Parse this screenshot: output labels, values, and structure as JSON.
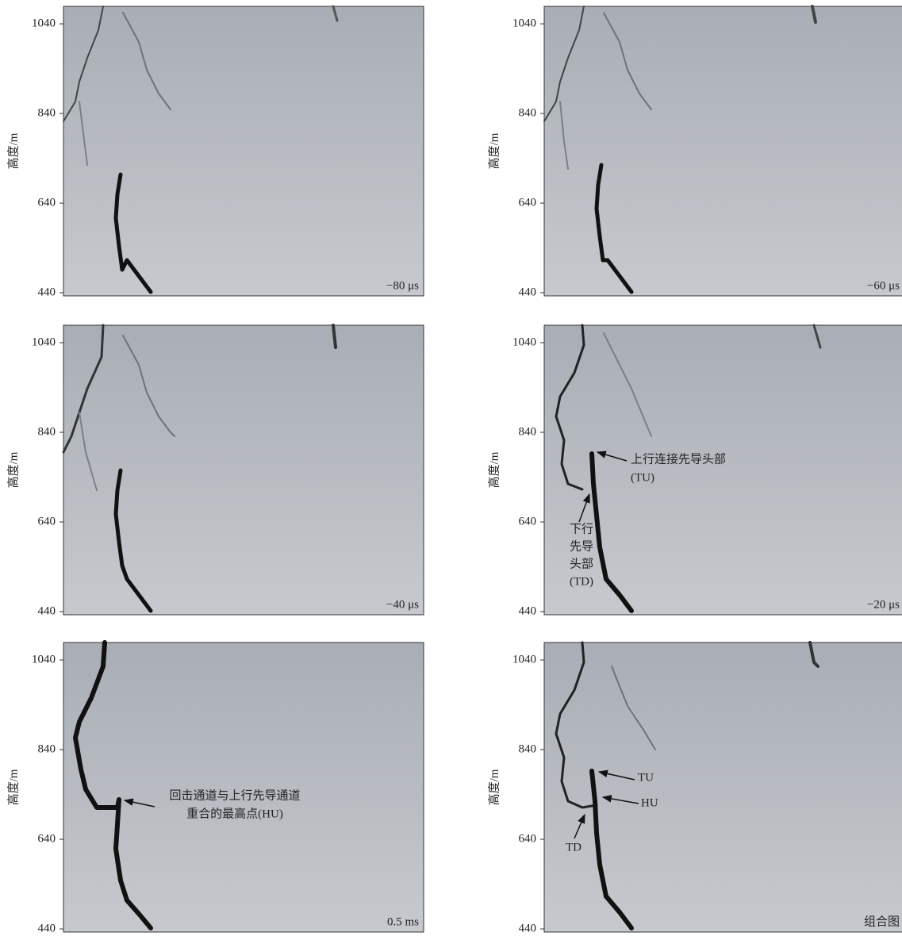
{
  "panels": [
    {
      "label": "−80 μs",
      "ylabel": "高度/m",
      "yticks": [
        440,
        640,
        840,
        1040
      ],
      "ylim": [
        433,
        1079
      ],
      "annotations": []
    },
    {
      "label": "−60 μs",
      "ylabel": "高度/m",
      "yticks": [
        440,
        640,
        840,
        1040
      ],
      "ylim": [
        433,
        1079
      ],
      "annotations": []
    },
    {
      "label": "−40 μs",
      "ylabel": "高度/m",
      "yticks": [
        440,
        640,
        840,
        1040
      ],
      "ylim": [
        433,
        1079
      ],
      "annotations": []
    },
    {
      "label": "−20 μs",
      "ylabel": "高度/m",
      "yticks": [
        440,
        640,
        840,
        1040
      ],
      "ylim": [
        433,
        1079
      ],
      "annotations": [
        [
          "上行连接先导头部",
          "(TU)"
        ],
        [
          "下行",
          "先导",
          "头部",
          "(TD)"
        ]
      ]
    },
    {
      "label": "0.5 ms",
      "ylabel": "高度/m",
      "yticks": [
        440,
        640,
        840,
        1040
      ],
      "ylim": [
        433,
        1079
      ],
      "annotations": [
        [
          "回击通道与上行先导通道",
          "重合的最高点(HU)"
        ]
      ]
    },
    {
      "label": "组合图",
      "ylabel": "高度/m",
      "yticks": [
        440,
        640,
        840,
        1040
      ],
      "ylim": [
        433,
        1079
      ],
      "annotations": [
        [
          "TU"
        ],
        [
          "HU"
        ],
        [
          "TD"
        ]
      ]
    }
  ]
}
